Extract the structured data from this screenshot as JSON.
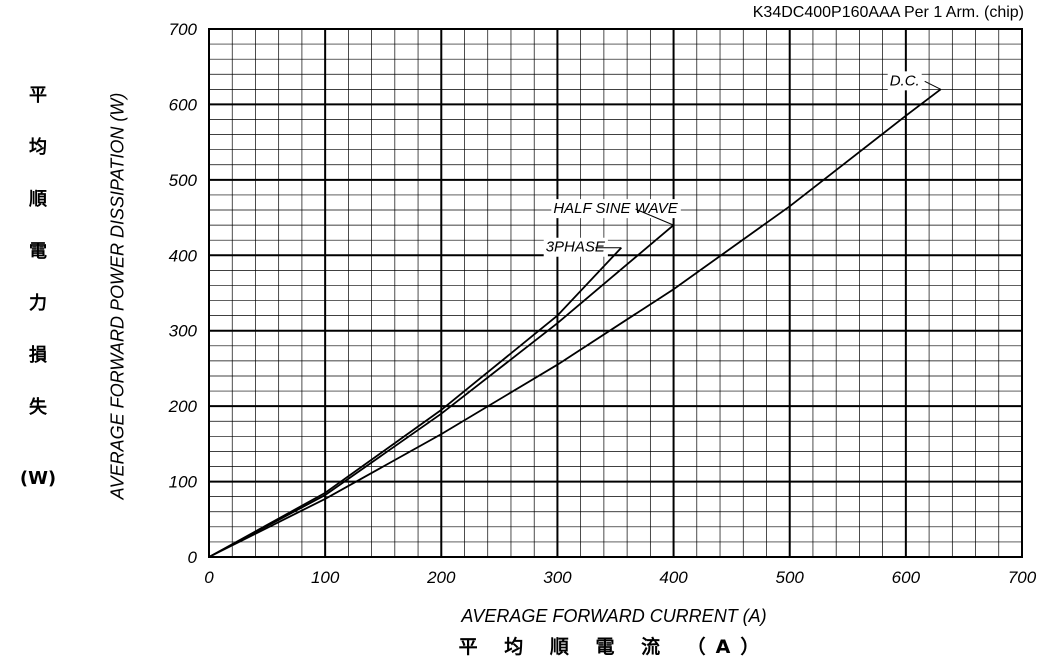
{
  "part_label": "K34DC400P160AAA  Per 1 Arm. (chip)",
  "jp_y_chars": [
    "平",
    "均",
    "順",
    "電",
    "力",
    "損",
    "失"
  ],
  "jp_y_unit": "(W)",
  "jp_x_label": "平 均 順 電 流 （A）",
  "colors": {
    "line": "#000000",
    "grid": "#000000",
    "background": "#ffffff"
  },
  "chart_data": {
    "type": "line",
    "title": "",
    "xlabel": "AVERAGE FORWARD CURRENT (A)",
    "ylabel": "AVERAGE FORWARD POWER DISSIPATION (W)",
    "xlim": [
      0,
      700
    ],
    "ylim": [
      0,
      700
    ],
    "x_ticks": [
      0,
      100,
      200,
      300,
      400,
      500,
      600,
      700
    ],
    "y_ticks": [
      0,
      100,
      200,
      300,
      400,
      500,
      600,
      700
    ],
    "major_grid_step": 100,
    "minor_grid_step": 20,
    "grid": true,
    "series": [
      {
        "name": "D.C.",
        "x": [
          0,
          100,
          200,
          300,
          400,
          500,
          600,
          630
        ],
        "y": [
          0,
          77,
          163,
          255,
          355,
          465,
          585,
          620
        ]
      },
      {
        "name": "3PHASE",
        "x": [
          0,
          100,
          200,
          300,
          355
        ],
        "y": [
          0,
          85,
          195,
          320,
          410
        ]
      },
      {
        "name": "HALF SINE WAVE",
        "x": [
          0,
          100,
          200,
          300,
          400
        ],
        "y": [
          0,
          82,
          190,
          310,
          440
        ]
      }
    ]
  }
}
